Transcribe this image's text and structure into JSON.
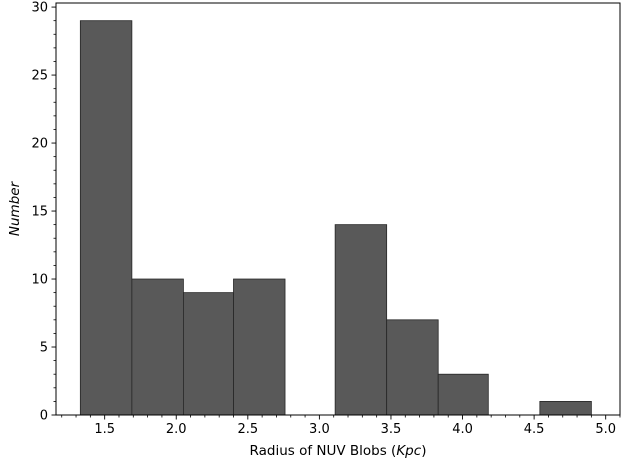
{
  "chart_data": {
    "type": "bar",
    "title": "",
    "xlabel_main": "Radius of NUV Blobs (",
    "xlabel_unit": "Kpc",
    "xlabel_close": ")",
    "ylabel": "Number",
    "xlim": [
      1.16,
      5.1
    ],
    "ylim": [
      0,
      30.3
    ],
    "grid": false,
    "bar_color": "#595959",
    "edge_color": "#262626",
    "bins": [
      {
        "x0": 1.33,
        "x1": 1.69,
        "value": 29
      },
      {
        "x0": 1.69,
        "x1": 2.05,
        "value": 10
      },
      {
        "x0": 2.05,
        "x1": 2.4,
        "value": 9
      },
      {
        "x0": 2.4,
        "x1": 2.76,
        "value": 10
      },
      {
        "x0": 2.76,
        "x1": 3.11,
        "value": 0
      },
      {
        "x0": 3.11,
        "x1": 3.47,
        "value": 14
      },
      {
        "x0": 3.47,
        "x1": 3.83,
        "value": 7
      },
      {
        "x0": 3.83,
        "x1": 4.18,
        "value": 3
      },
      {
        "x0": 4.18,
        "x1": 4.54,
        "value": 0
      },
      {
        "x0": 4.54,
        "x1": 4.9,
        "value": 1
      }
    ],
    "x_ticks": [
      {
        "value": 1.5,
        "label": "1.5"
      },
      {
        "value": 2.0,
        "label": "2.0"
      },
      {
        "value": 2.5,
        "label": "2.5"
      },
      {
        "value": 3.0,
        "label": "3.0"
      },
      {
        "value": 3.5,
        "label": "3.5"
      },
      {
        "value": 4.0,
        "label": "4.0"
      },
      {
        "value": 4.5,
        "label": "4.5"
      },
      {
        "value": 5.0,
        "label": "5.0"
      }
    ],
    "y_ticks": [
      {
        "value": 0,
        "label": "0"
      },
      {
        "value": 5,
        "label": "5"
      },
      {
        "value": 10,
        "label": "10"
      },
      {
        "value": 15,
        "label": "15"
      },
      {
        "value": 20,
        "label": "20"
      },
      {
        "value": 25,
        "label": "25"
      },
      {
        "value": 30,
        "label": "30"
      }
    ],
    "x_minor_step": 0.1,
    "y_minor_step": 1
  }
}
